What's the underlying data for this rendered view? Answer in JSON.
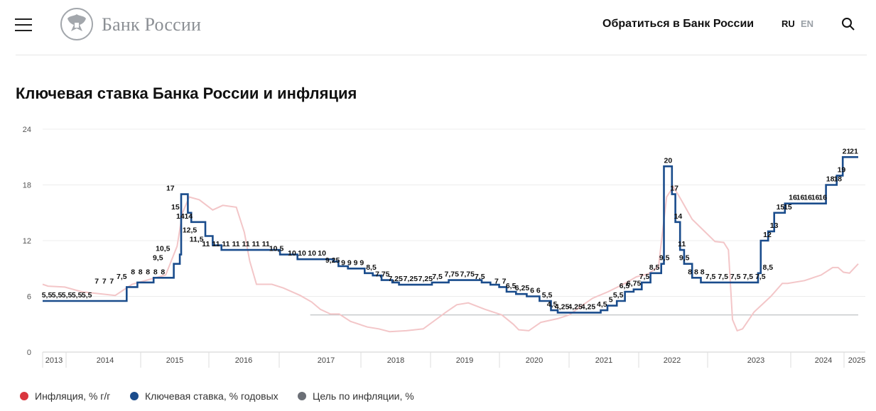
{
  "header": {
    "brand": "Банк России",
    "contact_label": "Обратиться в Банк России",
    "lang_ru": "RU",
    "lang_en": "EN",
    "menu_icon": "hamburger-menu-icon",
    "search_icon": "search-icon",
    "logo_icon": "double-headed-eagle-logo-icon"
  },
  "page": {
    "title": "Ключевая ставка Банка России и инфляция"
  },
  "colors": {
    "inflation": "#d9363e",
    "key_rate": "#1a4c8c",
    "target": "#6b6f76",
    "inflation_line": "#f3c6c8"
  },
  "chart_data": {
    "type": "line",
    "title": "",
    "ylim": [
      0,
      24
    ],
    "yticks": [
      0,
      6,
      12,
      18,
      24
    ],
    "xlim": [
      2012.92,
      2025.05
    ],
    "grid": true,
    "legend_position": "bottom-left",
    "x_year_labels": [
      "2013",
      "2014",
      "2015",
      "2016",
      "2017",
      "2018",
      "2019",
      "2020",
      "2021",
      "2022",
      "2023",
      "2024",
      "2025"
    ],
    "series": [
      {
        "name": "Ключевая ставка, % годовых",
        "kind": "step",
        "points": [
          [
            2013.7,
            5.5
          ],
          [
            2014.17,
            7
          ],
          [
            2014.33,
            7.5
          ],
          [
            2014.57,
            8
          ],
          [
            2014.87,
            9.5
          ],
          [
            2014.96,
            10.5
          ],
          [
            2014.98,
            17
          ],
          [
            2015.08,
            15
          ],
          [
            2015.13,
            14
          ],
          [
            2015.34,
            12.5
          ],
          [
            2015.45,
            11.5
          ],
          [
            2015.58,
            11
          ],
          [
            2016.45,
            10.5
          ],
          [
            2016.71,
            10
          ],
          [
            2017.24,
            9.75
          ],
          [
            2017.32,
            9.25
          ],
          [
            2017.46,
            9
          ],
          [
            2017.71,
            8.5
          ],
          [
            2017.83,
            8.25
          ],
          [
            2017.96,
            7.75
          ],
          [
            2018.12,
            7.5
          ],
          [
            2018.22,
            7.25
          ],
          [
            2018.71,
            7.5
          ],
          [
            2018.96,
            7.75
          ],
          [
            2019.45,
            7.5
          ],
          [
            2019.58,
            7.25
          ],
          [
            2019.71,
            7
          ],
          [
            2019.82,
            6.5
          ],
          [
            2019.96,
            6.25
          ],
          [
            2020.12,
            6
          ],
          [
            2020.31,
            5.5
          ],
          [
            2020.48,
            4.5
          ],
          [
            2020.58,
            4.25
          ],
          [
            2021.22,
            4.5
          ],
          [
            2021.32,
            5
          ],
          [
            2021.46,
            5.5
          ],
          [
            2021.58,
            6.5
          ],
          [
            2021.71,
            6.75
          ],
          [
            2021.83,
            7.5
          ],
          [
            2021.96,
            8.5
          ],
          [
            2022.12,
            9.5
          ],
          [
            2022.16,
            20
          ],
          [
            2022.28,
            17
          ],
          [
            2022.33,
            14
          ],
          [
            2022.4,
            11
          ],
          [
            2022.46,
            9.5
          ],
          [
            2022.58,
            8
          ],
          [
            2022.71,
            7.5
          ],
          [
            2023.56,
            8.5
          ],
          [
            2023.6,
            12
          ],
          [
            2023.71,
            13
          ],
          [
            2023.8,
            15
          ],
          [
            2023.96,
            16
          ],
          [
            2024.57,
            18
          ],
          [
            2024.73,
            19
          ],
          [
            2024.82,
            21
          ],
          [
            2025.05,
            21
          ]
        ],
        "data_labels": [
          {
            "x": 2013.04,
            "label": "5,5",
            "value": 5.5
          },
          {
            "x": 2013.2,
            "label": "5,5",
            "value": 5.5
          },
          {
            "x": 2013.36,
            "label": "5,5",
            "value": 5.5
          },
          {
            "x": 2013.52,
            "label": "5,5",
            "value": 5.5
          },
          {
            "x": 2013.68,
            "label": "5,5",
            "value": 5.5
          },
          {
            "x": 2013.84,
            "label": "7",
            "value": 7
          },
          {
            "x": 2013.96,
            "label": "7",
            "value": 7
          },
          {
            "x": 2014.08,
            "label": "7",
            "value": 7
          },
          {
            "x": 2014.24,
            "label": "7,5",
            "value": 7.5
          },
          {
            "x": 2014.42,
            "label": "8",
            "value": 8
          },
          {
            "x": 2014.54,
            "label": "8",
            "value": 8
          },
          {
            "x": 2014.66,
            "label": "8",
            "value": 8
          },
          {
            "x": 2014.78,
            "label": "8",
            "value": 8
          },
          {
            "x": 2014.9,
            "label": "8",
            "value": 8
          },
          {
            "x": 2014.82,
            "label": "9,5",
            "value": 9.5
          },
          {
            "x": 2014.9,
            "label": "10,5",
            "value": 10.5
          },
          {
            "x": 2015.02,
            "label": "17",
            "value": 17
          },
          {
            "x": 2015.1,
            "label": "15",
            "value": 15
          },
          {
            "x": 2015.18,
            "label": "14",
            "value": 14
          },
          {
            "x": 2015.31,
            "label": "14",
            "value": 14
          },
          {
            "x": 2015.33,
            "label": "12,5",
            "value": 12.5
          },
          {
            "x": 2015.44,
            "label": "11,5",
            "value": 11.5
          },
          {
            "x": 2015.59,
            "label": "11",
            "value": 11
          },
          {
            "x": 2015.75,
            "label": "11",
            "value": 11
          },
          {
            "x": 2015.91,
            "label": "11",
            "value": 11
          },
          {
            "x": 2016.07,
            "label": "11",
            "value": 11
          },
          {
            "x": 2016.23,
            "label": "11",
            "value": 11
          },
          {
            "x": 2016.39,
            "label": "11",
            "value": 11
          },
          {
            "x": 2016.55,
            "label": "11",
            "value": 11
          },
          {
            "x": 2016.72,
            "label": "10,5",
            "value": 10.5
          },
          {
            "x": 2016.97,
            "label": "10",
            "value": 10
          },
          {
            "x": 2017.13,
            "label": "10",
            "value": 10
          },
          {
            "x": 2017.29,
            "label": "10",
            "value": 10
          },
          {
            "x": 2017.45,
            "label": "10",
            "value": 10
          },
          {
            "x": 2017.62,
            "label": "9,25",
            "value": 9.25
          },
          {
            "x": 2017.79,
            "label": "9",
            "value": 9
          },
          {
            "x": 2017.89,
            "label": "9",
            "value": 9
          },
          {
            "x": 2017.99,
            "label": "9",
            "value": 9
          },
          {
            "x": 2018.09,
            "label": "9",
            "value": 9
          },
          {
            "x": 2018.24,
            "label": "8,5",
            "value": 8.5
          },
          {
            "x": 2018.42,
            "label": "7,75",
            "value": 7.75
          },
          {
            "x": 2018.63,
            "label": "7,25",
            "value": 7.25
          },
          {
            "x": 2018.87,
            "label": "7,25",
            "value": 7.25
          },
          {
            "x": 2019.11,
            "label": "7,25",
            "value": 7.25
          },
          {
            "x": 2019.3,
            "label": "7,5",
            "value": 7.5
          },
          {
            "x": 2019.53,
            "label": "7,75",
            "value": 7.75
          },
          {
            "x": 2019.78,
            "label": "7,75",
            "value": 7.75
          },
          {
            "x": 2019.98,
            "label": "7,5",
            "value": 7.5
          },
          {
            "x": 2020.25,
            "label": "7",
            "value": 7
          },
          {
            "x": 2020.37,
            "label": "7",
            "value": 7
          },
          {
            "x": 2020.48,
            "label": "6,5",
            "value": 6.5
          },
          {
            "x": 2020.66,
            "label": "6,25",
            "value": 6.25
          },
          {
            "x": 2020.82,
            "label": "6",
            "value": 6
          },
          {
            "x": 2020.92,
            "label": "6",
            "value": 6
          },
          {
            "x": 2021.06,
            "label": "5,5",
            "value": 5.5
          },
          {
            "x": 2021.14,
            "label": "4,5",
            "value": 4.5
          },
          {
            "x": 2021.3,
            "label": "4,25",
            "value": 4.25
          },
          {
            "x": 2021.51,
            "label": "4,25",
            "value": 4.25
          },
          {
            "x": 2021.72,
            "label": "4,25",
            "value": 4.25
          },
          {
            "x": 2021.94,
            "label": "4,5",
            "value": 4.5
          },
          {
            "x": 2022.08,
            "label": "5",
            "value": 5
          },
          {
            "x": 2022.2,
            "label": "5,5",
            "value": 5.5
          },
          {
            "x": 2022.3,
            "label": "6,5",
            "value": 6.5
          },
          {
            "x": 2022.45,
            "label": "6,75",
            "value": 6.75
          },
          {
            "x": 2022.62,
            "label": "7,5",
            "value": 7.5
          },
          {
            "x": 2022.78,
            "label": "8,5",
            "value": 8.5
          },
          {
            "x": 2022.94,
            "label": "9,5",
            "value": 9.5
          },
          {
            "x": 2023.0,
            "label": "20",
            "value": 20
          },
          {
            "x": 2023.1,
            "label": "17",
            "value": 17
          },
          {
            "x": 2023.16,
            "label": "14",
            "value": 14
          },
          {
            "x": 2023.22,
            "label": "11",
            "value": 11
          },
          {
            "x": 2023.26,
            "label": "9,5",
            "value": 9.5
          },
          {
            "x": 2023.35,
            "label": "8",
            "value": 8
          },
          {
            "x": 2023.45,
            "label": "8",
            "value": 8
          },
          {
            "x": 2023.55,
            "label": "8",
            "value": 8
          },
          {
            "x": 2023.68,
            "label": "7,5",
            "value": 7.5
          },
          {
            "x": 2023.88,
            "label": "7,5",
            "value": 7.5
          },
          {
            "x": 2024.08,
            "label": "7,5",
            "value": 7.5
          },
          {
            "x": 2024.28,
            "label": "7,5",
            "value": 7.5
          },
          {
            "x": 2024.48,
            "label": "7,5",
            "value": 7.5
          },
          {
            "x": 2024.6,
            "label": "8,5",
            "value": 8.5
          },
          {
            "x": 2024.59,
            "label": "12",
            "value": 12
          },
          {
            "x": 2024.7,
            "label": "13",
            "value": 13
          },
          {
            "x": 2024.8,
            "label": "15",
            "value": 15
          },
          {
            "x": 2024.92,
            "label": "15",
            "value": 15
          },
          {
            "x": 2025.0,
            "label": "16",
            "value": 16
          },
          {
            "x": 2025.12,
            "label": "16",
            "value": 16
          },
          {
            "x": 2025.24,
            "label": "16",
            "value": 16
          },
          {
            "x": 2025.36,
            "label": "16",
            "value": 16
          },
          {
            "x": 2025.48,
            "label": "16",
            "value": 16
          },
          {
            "x": 2025.6,
            "label": "18",
            "value": 18
          },
          {
            "x": 2025.72,
            "label": "18",
            "value": 18
          },
          {
            "x": 2025.78,
            "label": "19",
            "value": 19
          },
          {
            "x": 2025.86,
            "label": "21",
            "value": 21
          },
          {
            "x": 2025.98,
            "label": "21",
            "value": 21
          }
        ]
      },
      {
        "name": "Инфляция, % г/г",
        "kind": "line",
        "points": [
          [
            2012.92,
            7.3
          ],
          [
            2013.0,
            7.1
          ],
          [
            2013.25,
            7.0
          ],
          [
            2013.5,
            6.5
          ],
          [
            2013.75,
            6.3
          ],
          [
            2014.0,
            6.1
          ],
          [
            2014.25,
            7.3
          ],
          [
            2014.5,
            7.8
          ],
          [
            2014.75,
            8.3
          ],
          [
            2014.92,
            11.4
          ],
          [
            2015.0,
            15.0
          ],
          [
            2015.1,
            16.7
          ],
          [
            2015.25,
            16.4
          ],
          [
            2015.45,
            15.3
          ],
          [
            2015.6,
            15.8
          ],
          [
            2015.8,
            15.6
          ],
          [
            2015.92,
            12.9
          ],
          [
            2016.0,
            9.8
          ],
          [
            2016.1,
            7.3
          ],
          [
            2016.33,
            7.3
          ],
          [
            2016.5,
            6.9
          ],
          [
            2016.75,
            6.1
          ],
          [
            2016.92,
            5.4
          ],
          [
            2017.05,
            4.6
          ],
          [
            2017.2,
            4.1
          ],
          [
            2017.33,
            4.1
          ],
          [
            2017.5,
            3.3
          ],
          [
            2017.75,
            2.7
          ],
          [
            2017.92,
            2.5
          ],
          [
            2018.08,
            2.2
          ],
          [
            2018.33,
            2.3
          ],
          [
            2018.58,
            2.5
          ],
          [
            2018.75,
            3.4
          ],
          [
            2018.92,
            4.3
          ],
          [
            2019.08,
            5.1
          ],
          [
            2019.25,
            5.3
          ],
          [
            2019.5,
            4.6
          ],
          [
            2019.75,
            4.0
          ],
          [
            2019.92,
            3.0
          ],
          [
            2020.0,
            2.4
          ],
          [
            2020.15,
            2.3
          ],
          [
            2020.33,
            3.2
          ],
          [
            2020.58,
            3.6
          ],
          [
            2020.75,
            4.0
          ],
          [
            2020.92,
            4.9
          ],
          [
            2021.1,
            5.8
          ],
          [
            2021.33,
            6.5
          ],
          [
            2021.58,
            7.4
          ],
          [
            2021.75,
            8.1
          ],
          [
            2021.92,
            8.4
          ],
          [
            2022.08,
            9.2
          ],
          [
            2022.2,
            16.7
          ],
          [
            2022.3,
            17.8
          ],
          [
            2022.4,
            16.6
          ],
          [
            2022.58,
            14.3
          ],
          [
            2022.75,
            13.1
          ],
          [
            2022.92,
            11.9
          ],
          [
            2023.05,
            11.8
          ],
          [
            2023.12,
            11.0
          ],
          [
            2023.18,
            3.5
          ],
          [
            2023.25,
            2.3
          ],
          [
            2023.33,
            2.5
          ],
          [
            2023.5,
            4.3
          ],
          [
            2023.75,
            6.0
          ],
          [
            2023.92,
            7.4
          ],
          [
            2024.0,
            7.4
          ],
          [
            2024.25,
            7.7
          ],
          [
            2024.5,
            8.3
          ],
          [
            2024.67,
            9.1
          ],
          [
            2024.75,
            9.1
          ],
          [
            2024.83,
            8.6
          ],
          [
            2024.92,
            8.5
          ],
          [
            2025.05,
            9.5
          ]
        ]
      },
      {
        "name": "Цель по инфляции, %",
        "kind": "line",
        "points": [
          [
            2016.9,
            4
          ],
          [
            2025.05,
            4
          ]
        ]
      }
    ]
  },
  "legend": [
    {
      "label": "Инфляция, % г/г",
      "color": "#d9363e"
    },
    {
      "label": "Ключевая ставка, % годовых",
      "color": "#1a4c8c"
    },
    {
      "label": "Цель по инфляции, %",
      "color": "#6b6f76"
    }
  ]
}
